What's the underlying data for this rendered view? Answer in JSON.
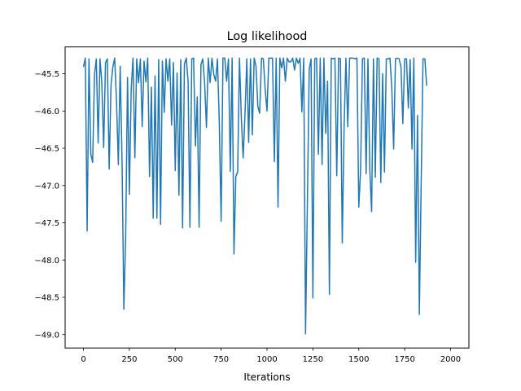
{
  "chart_data": {
    "type": "line",
    "title": "Log likelihood",
    "xlabel": "Iterations",
    "ylabel": "",
    "xlim": [
      -100,
      2100
    ],
    "ylim": [
      -49.18,
      -45.14
    ],
    "x_ticks": [
      0,
      250,
      500,
      750,
      1000,
      1250,
      1500,
      1750,
      2000
    ],
    "x_tick_labels": [
      "0",
      "250",
      "500",
      "750",
      "1000",
      "1250",
      "1500",
      "1750",
      "2000"
    ],
    "y_ticks": [
      -49.0,
      -48.5,
      -48.0,
      -47.5,
      -47.0,
      -46.5,
      -46.0,
      -45.5
    ],
    "y_tick_labels": [
      "−49.0",
      "−48.5",
      "−48.0",
      "−47.5",
      "−47.0",
      "−46.5",
      "−46.0",
      "−45.5"
    ],
    "grid": false,
    "series": [
      {
        "color": "#1f77b4",
        "x_start": 0,
        "x_step": 10,
        "values": [
          -45.41,
          -45.29,
          -47.61,
          -45.3,
          -46.58,
          -46.69,
          -45.51,
          -45.3,
          -46.43,
          -45.3,
          -45.62,
          -46.49,
          -45.35,
          -45.3,
          -46.78,
          -45.66,
          -45.41,
          -45.29,
          -45.87,
          -46.72,
          -45.4,
          -46.64,
          -48.66,
          -47.68,
          -45.55,
          -47.12,
          -45.71,
          -45.29,
          -46.63,
          -45.3,
          -45.62,
          -45.3,
          -46.21,
          -45.33,
          -45.61,
          -45.29,
          -46.88,
          -45.68,
          -47.44,
          -45.53,
          -47.44,
          -45.31,
          -47.52,
          -45.33,
          -46.02,
          -45.3,
          -45.6,
          -45.3,
          -46.19,
          -45.35,
          -46.8,
          -45.49,
          -47.13,
          -45.31,
          -47.57,
          -45.37,
          -45.29,
          -45.6,
          -47.56,
          -45.3,
          -45.29,
          -46.47,
          -45.81,
          -47.56,
          -45.38,
          -45.3,
          -45.62,
          -46.22,
          -45.29,
          -45.62,
          -45.29,
          -45.51,
          -45.6,
          -45.3,
          -46.15,
          -47.48,
          -45.29,
          -45.29,
          -45.6,
          -45.3,
          -46.81,
          -45.29,
          -47.92,
          -46.88,
          -46.82,
          -45.29,
          -46.09,
          -46.63,
          -46.05,
          -45.3,
          -46.42,
          -45.3,
          -46.32,
          -45.29,
          -45.4,
          -45.94,
          -46.03,
          -45.29,
          -45.3,
          -45.71,
          -46.0,
          -45.29,
          -45.29,
          -45.29,
          -46.68,
          -45.29,
          -47.29,
          -45.29,
          -45.42,
          -45.29,
          -45.6,
          -45.29,
          -45.34,
          -45.34,
          -45.29,
          -45.45,
          -45.29,
          -45.36,
          -45.29,
          -46.01,
          -45.29,
          -48.99,
          -47.22,
          -45.44,
          -45.3,
          -48.51,
          -45.3,
          -45.29,
          -46.58,
          -45.29,
          -46.72,
          -45.29,
          -46.3,
          -45.6,
          -48.46,
          -45.29,
          -45.3,
          -45.29,
          -46.87,
          -45.29,
          -45.3,
          -47.77,
          -46.22,
          -45.29,
          -46.21,
          -45.29,
          -45.29,
          -45.29,
          -45.3,
          -45.29,
          -47.29,
          -46.78,
          -45.3,
          -45.29,
          -46.84,
          -45.3,
          -46.78,
          -47.35,
          -45.3,
          -46.89,
          -45.29,
          -45.3,
          -46.96,
          -45.5,
          -46.82,
          -45.3,
          -45.3,
          -45.29,
          -45.7,
          -46.51,
          -45.3,
          -45.29,
          -45.3,
          -45.41,
          -46.17,
          -45.3,
          -45.3,
          -45.96,
          -45.31,
          -46.51,
          -45.29,
          -48.03,
          -46.06,
          -48.73,
          -46.97,
          -45.3,
          -45.3,
          -45.66
        ]
      }
    ]
  }
}
